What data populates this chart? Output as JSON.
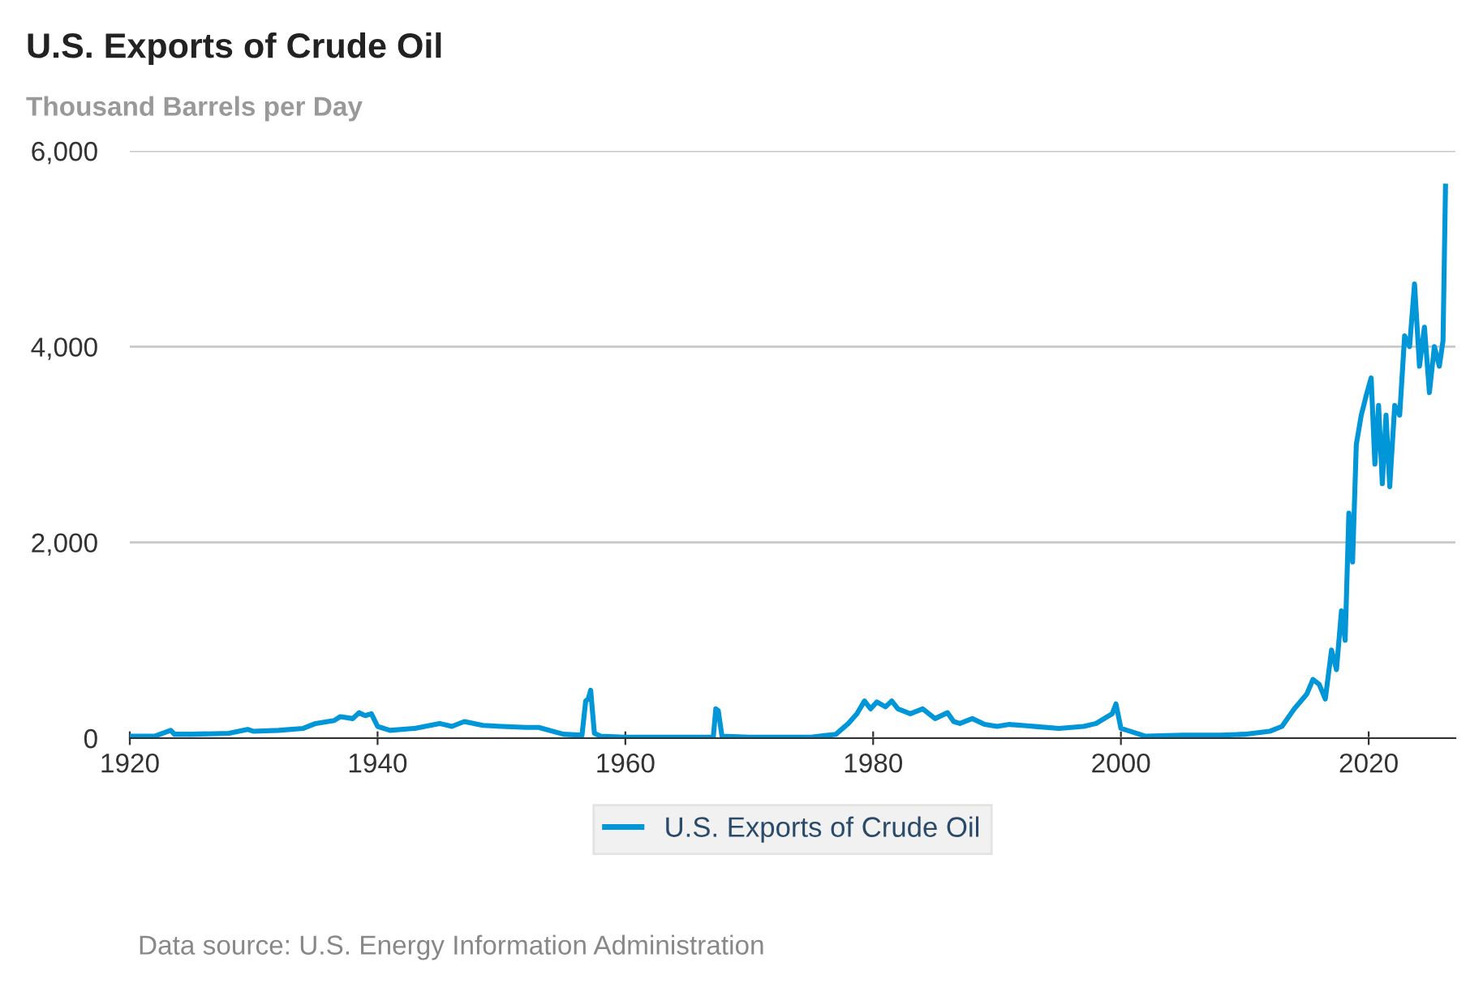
{
  "chart_data": {
    "type": "line",
    "title": "U.S. Exports of Crude Oil",
    "subtitle": "Thousand Barrels per Day",
    "annotations": [
      "Data source: U.S. Energy Information Administration"
    ],
    "xlim": [
      1920,
      2027
    ],
    "xticks": [
      1920,
      1940,
      1960,
      1980,
      2000,
      2020
    ],
    "ylim": [
      0,
      6000
    ],
    "yticks": [
      {
        "value": 0,
        "label": "0"
      },
      {
        "value": 2000,
        "label": "2,000"
      },
      {
        "value": 4000,
        "label": "4,000"
      },
      {
        "value": 6000,
        "label": "6,000"
      }
    ],
    "grid": "y",
    "legend": "bottom",
    "series": [
      {
        "name": "U.S. Exports of Crude Oil",
        "color": "#0096d7",
        "x": [
          1920,
          1922,
          1923.3,
          1923.6,
          1925,
          1928,
          1929.5,
          1930,
          1932,
          1934,
          1935,
          1936.5,
          1937,
          1938,
          1938.5,
          1939,
          1939.5,
          1940,
          1941,
          1943,
          1945,
          1946,
          1947,
          1948.5,
          1950,
          1952,
          1953,
          1955,
          1956.5,
          1956.8,
          1957,
          1957.2,
          1957.5,
          1958,
          1960,
          1965,
          1967.1,
          1967.3,
          1967.5,
          1967.8,
          1970,
          1975,
          1977,
          1978,
          1978.7,
          1979.3,
          1979.8,
          1980.3,
          1981,
          1981.5,
          1982,
          1983,
          1984,
          1985,
          1986,
          1986.5,
          1987,
          1988,
          1989,
          1990,
          1991,
          1992,
          1995,
          1997,
          1998,
          1999.3,
          1999.6,
          2000,
          2002,
          2005,
          2008,
          2010,
          2012,
          2013,
          2014,
          2015,
          2015.5,
          2016,
          2016.5,
          2017,
          2017.4,
          2017.8,
          2018.1,
          2018.4,
          2018.7,
          2019,
          2019.4,
          2019.8,
          2020.2,
          2020.5,
          2020.8,
          2021.1,
          2021.4,
          2021.7,
          2022.1,
          2022.5,
          2022.9,
          2023.3,
          2023.7,
          2024.1,
          2024.5,
          2024.9,
          2025.3,
          2025.7,
          2026.0,
          2026.2
        ],
        "values": [
          20,
          20,
          80,
          40,
          40,
          50,
          90,
          70,
          80,
          100,
          150,
          180,
          220,
          200,
          260,
          230,
          250,
          120,
          80,
          100,
          150,
          120,
          170,
          130,
          120,
          110,
          110,
          40,
          30,
          380,
          400,
          490,
          50,
          20,
          10,
          10,
          10,
          300,
          280,
          20,
          10,
          10,
          40,
          150,
          250,
          380,
          300,
          370,
          320,
          380,
          300,
          250,
          300,
          200,
          260,
          170,
          150,
          200,
          140,
          120,
          140,
          130,
          100,
          120,
          150,
          250,
          350,
          100,
          20,
          30,
          30,
          40,
          70,
          120,
          300,
          450,
          600,
          550,
          400,
          900,
          700,
          1300,
          1000,
          2300,
          1800,
          3000,
          3300,
          3500,
          3680,
          2800,
          3400,
          2600,
          3300,
          2570,
          3400,
          3300,
          4110,
          4000,
          4640,
          3800,
          4200,
          3530,
          4000,
          3800,
          4060,
          5640
        ]
      }
    ]
  }
}
